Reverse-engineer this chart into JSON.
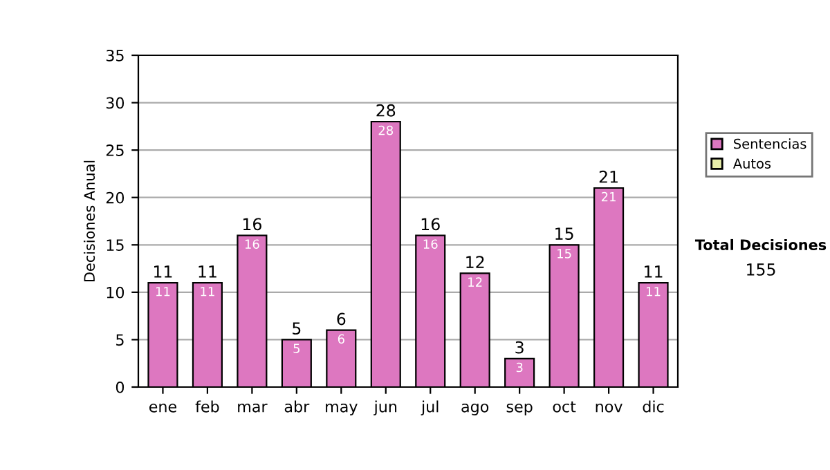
{
  "chart_data": {
    "type": "bar",
    "ylabel": "Decisiones Anual",
    "stacked": true,
    "categories": [
      "ene",
      "feb",
      "mar",
      "abr",
      "may",
      "jun",
      "jul",
      "ago",
      "sep",
      "oct",
      "nov",
      "dic"
    ],
    "series": [
      {
        "name": "Sentencias",
        "color": "#dd77c0",
        "values": [
          11,
          11,
          16,
          5,
          6,
          28,
          16,
          12,
          3,
          15,
          21,
          11
        ],
        "value_labels": [
          "11",
          "11",
          "16",
          "5",
          "6",
          "28",
          "16",
          "12",
          "3",
          "15",
          "21",
          "11"
        ]
      },
      {
        "name": "Autos",
        "color": "#e8eeaa",
        "values": [
          0,
          0,
          0,
          0,
          0,
          0,
          0,
          0,
          0,
          0,
          0,
          0
        ]
      }
    ],
    "totals": [
      "11",
      "11",
      "16",
      "5",
      "6",
      "28",
      "16",
      "12",
      "3",
      "15",
      "21",
      "11"
    ],
    "ylim": [
      0,
      35
    ],
    "yticks": [
      0,
      5,
      10,
      15,
      20,
      25,
      30,
      35
    ],
    "grid": "y",
    "legend": "right",
    "annotations": [
      "Total Decisiones",
      "155"
    ]
  }
}
